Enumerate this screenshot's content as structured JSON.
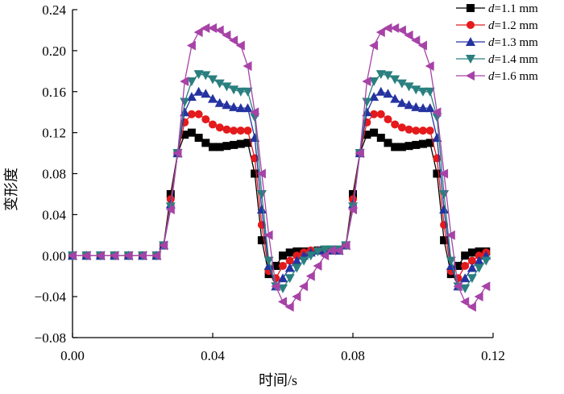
{
  "chart_data": {
    "type": "line",
    "title": "",
    "xlabel": "时间/s",
    "ylabel": "变形度",
    "xlim": [
      0,
      0.12
    ],
    "ylim": [
      -0.08,
      0.24
    ],
    "xticks": [
      0.0,
      0.04,
      0.08,
      0.12
    ],
    "xtick_labels": [
      "0.00",
      "0.04",
      "0.08",
      "0.12"
    ],
    "yticks": [
      -0.08,
      -0.04,
      0.0,
      0.04,
      0.08,
      0.12,
      0.16,
      0.2,
      0.24
    ],
    "ytick_labels": [
      "−0.08",
      "−0.04",
      "0.00",
      "0.04",
      "0.08",
      "0.12",
      "0.16",
      "0.20",
      "0.24"
    ],
    "legend_position": "top-right",
    "series": [
      {
        "name": "d=1.1 mm",
        "name_var": "d",
        "name_rest": "=1.1 mm",
        "color": "#000000",
        "marker": "square",
        "x": [
          0.0,
          0.004,
          0.008,
          0.012,
          0.016,
          0.02,
          0.024,
          0.026,
          0.028,
          0.03,
          0.032,
          0.034,
          0.036,
          0.038,
          0.04,
          0.042,
          0.044,
          0.046,
          0.048,
          0.05,
          0.052,
          0.054,
          0.056,
          0.058,
          0.06,
          0.062,
          0.064,
          0.066,
          0.068,
          0.07,
          0.072,
          0.074,
          0.076,
          0.078,
          0.08,
          0.082,
          0.084,
          0.086,
          0.088,
          0.09,
          0.092,
          0.094,
          0.096,
          0.098,
          0.1,
          0.102,
          0.104,
          0.106,
          0.108,
          0.11,
          0.112,
          0.114,
          0.116,
          0.118
        ],
        "y": [
          0.0,
          0.0,
          0.0,
          0.0,
          0.0,
          0.0,
          0.0,
          0.01,
          0.06,
          0.1,
          0.118,
          0.12,
          0.115,
          0.11,
          0.106,
          0.106,
          0.107,
          0.108,
          0.109,
          0.11,
          0.08,
          0.015,
          -0.018,
          -0.01,
          0.0,
          0.003,
          0.004,
          0.004,
          0.004,
          0.005,
          0.005,
          0.005,
          0.005,
          0.01,
          0.06,
          0.1,
          0.118,
          0.12,
          0.115,
          0.11,
          0.106,
          0.106,
          0.107,
          0.108,
          0.109,
          0.11,
          0.08,
          0.015,
          -0.018,
          -0.01,
          0.0,
          0.003,
          0.004,
          0.004
        ]
      },
      {
        "name": "d=1.2 mm",
        "name_var": "d",
        "name_rest": "=1.2 mm",
        "color": "#e41a1c",
        "marker": "circle",
        "x": [
          0.0,
          0.004,
          0.008,
          0.012,
          0.016,
          0.02,
          0.024,
          0.026,
          0.028,
          0.03,
          0.032,
          0.034,
          0.036,
          0.038,
          0.04,
          0.042,
          0.044,
          0.046,
          0.048,
          0.05,
          0.052,
          0.054,
          0.056,
          0.058,
          0.06,
          0.062,
          0.064,
          0.066,
          0.068,
          0.07,
          0.072,
          0.074,
          0.076,
          0.078,
          0.08,
          0.082,
          0.084,
          0.086,
          0.088,
          0.09,
          0.092,
          0.094,
          0.096,
          0.098,
          0.1,
          0.102,
          0.104,
          0.106,
          0.108,
          0.11,
          0.112,
          0.114,
          0.116,
          0.118
        ],
        "y": [
          0.0,
          0.0,
          0.0,
          0.0,
          0.0,
          0.0,
          0.0,
          0.01,
          0.055,
          0.1,
          0.13,
          0.138,
          0.138,
          0.133,
          0.128,
          0.125,
          0.123,
          0.122,
          0.122,
          0.122,
          0.095,
          0.03,
          -0.015,
          -0.022,
          -0.01,
          -0.005,
          0.0,
          0.003,
          0.005,
          0.005,
          0.005,
          0.005,
          0.005,
          0.01,
          0.055,
          0.1,
          0.13,
          0.138,
          0.138,
          0.133,
          0.128,
          0.125,
          0.123,
          0.122,
          0.122,
          0.122,
          0.095,
          0.03,
          -0.015,
          -0.022,
          -0.01,
          -0.005,
          0.0,
          0.003
        ]
      },
      {
        "name": "d=1.3 mm",
        "name_var": "d",
        "name_rest": "=1.3 mm",
        "color": "#2433a0",
        "marker": "triangle-up",
        "x": [
          0.0,
          0.004,
          0.008,
          0.012,
          0.016,
          0.02,
          0.024,
          0.026,
          0.028,
          0.03,
          0.032,
          0.034,
          0.036,
          0.038,
          0.04,
          0.042,
          0.044,
          0.046,
          0.048,
          0.05,
          0.052,
          0.054,
          0.056,
          0.058,
          0.06,
          0.062,
          0.064,
          0.066,
          0.068,
          0.07,
          0.072,
          0.074,
          0.076,
          0.078,
          0.08,
          0.082,
          0.084,
          0.086,
          0.088,
          0.09,
          0.092,
          0.094,
          0.096,
          0.098,
          0.1,
          0.102,
          0.104,
          0.106,
          0.108,
          0.11,
          0.112,
          0.114,
          0.116,
          0.118
        ],
        "y": [
          0.0,
          0.0,
          0.0,
          0.0,
          0.0,
          0.0,
          0.0,
          0.01,
          0.05,
          0.1,
          0.14,
          0.155,
          0.16,
          0.158,
          0.153,
          0.149,
          0.147,
          0.145,
          0.144,
          0.144,
          0.115,
          0.045,
          -0.01,
          -0.03,
          -0.022,
          -0.012,
          -0.005,
          0.0,
          0.003,
          0.005,
          0.005,
          0.005,
          0.005,
          0.01,
          0.05,
          0.1,
          0.14,
          0.155,
          0.16,
          0.158,
          0.153,
          0.149,
          0.147,
          0.145,
          0.144,
          0.144,
          0.115,
          0.045,
          -0.01,
          -0.03,
          -0.022,
          -0.012,
          -0.005,
          0.0
        ]
      },
      {
        "name": "d=1.4 mm",
        "name_var": "d",
        "name_rest": "=1.4 mm",
        "color": "#2a7f7f",
        "marker": "triangle-down",
        "x": [
          0.0,
          0.004,
          0.008,
          0.012,
          0.016,
          0.02,
          0.024,
          0.026,
          0.028,
          0.03,
          0.032,
          0.034,
          0.036,
          0.038,
          0.04,
          0.042,
          0.044,
          0.046,
          0.048,
          0.05,
          0.052,
          0.054,
          0.056,
          0.058,
          0.06,
          0.062,
          0.064,
          0.066,
          0.068,
          0.07,
          0.072,
          0.074,
          0.076,
          0.078,
          0.08,
          0.082,
          0.084,
          0.086,
          0.088,
          0.09,
          0.092,
          0.094,
          0.096,
          0.098,
          0.1,
          0.102,
          0.104,
          0.106,
          0.108,
          0.11,
          0.112,
          0.114,
          0.116,
          0.118
        ],
        "y": [
          0.0,
          0.0,
          0.0,
          0.0,
          0.0,
          0.0,
          0.0,
          0.01,
          0.048,
          0.1,
          0.15,
          0.17,
          0.177,
          0.176,
          0.172,
          0.168,
          0.165,
          0.162,
          0.16,
          0.16,
          0.135,
          0.06,
          -0.005,
          -0.03,
          -0.032,
          -0.022,
          -0.012,
          -0.005,
          0.0,
          0.004,
          0.006,
          0.006,
          0.006,
          0.01,
          0.048,
          0.1,
          0.15,
          0.17,
          0.177,
          0.176,
          0.172,
          0.168,
          0.165,
          0.162,
          0.16,
          0.16,
          0.135,
          0.06,
          -0.005,
          -0.03,
          -0.032,
          -0.022,
          -0.012,
          -0.005
        ]
      },
      {
        "name": "d=1.6 mm",
        "name_var": "d",
        "name_rest": "=1.6 mm",
        "color": "#a742a7",
        "marker": "triangle-left",
        "x": [
          0.0,
          0.004,
          0.008,
          0.012,
          0.016,
          0.02,
          0.024,
          0.026,
          0.028,
          0.03,
          0.032,
          0.034,
          0.036,
          0.038,
          0.04,
          0.042,
          0.044,
          0.046,
          0.048,
          0.05,
          0.052,
          0.054,
          0.056,
          0.058,
          0.06,
          0.062,
          0.064,
          0.066,
          0.068,
          0.07,
          0.072,
          0.074,
          0.076,
          0.078,
          0.08,
          0.082,
          0.084,
          0.086,
          0.088,
          0.09,
          0.092,
          0.094,
          0.096,
          0.098,
          0.1,
          0.102,
          0.104,
          0.106,
          0.108,
          0.11,
          0.112,
          0.114,
          0.116,
          0.118
        ],
        "y": [
          0.0,
          0.0,
          0.0,
          0.0,
          0.0,
          0.0,
          0.0,
          0.01,
          0.045,
          0.1,
          0.17,
          0.205,
          0.218,
          0.222,
          0.222,
          0.22,
          0.215,
          0.21,
          0.205,
          0.185,
          0.14,
          0.08,
          0.02,
          -0.03,
          -0.045,
          -0.05,
          -0.04,
          -0.03,
          -0.02,
          -0.01,
          0.0,
          0.005,
          0.005,
          0.01,
          0.045,
          0.1,
          0.17,
          0.205,
          0.218,
          0.222,
          0.222,
          0.22,
          0.215,
          0.21,
          0.205,
          0.185,
          0.14,
          0.08,
          0.02,
          -0.03,
          -0.045,
          -0.05,
          -0.04,
          -0.03
        ]
      }
    ]
  }
}
